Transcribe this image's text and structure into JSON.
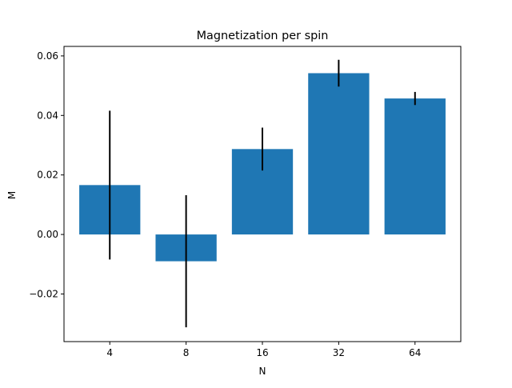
{
  "chart_data": {
    "type": "bar",
    "title": "Magnetization per spin",
    "xlabel": "N",
    "ylabel": "M",
    "categories": [
      "4",
      "8",
      "16",
      "32",
      "64"
    ],
    "values": [
      0.0166,
      -0.009,
      0.0287,
      0.0542,
      0.0457
    ],
    "errors": [
      0.025,
      0.0222,
      0.0072,
      0.0045,
      0.0022
    ],
    "ylim": [
      -0.036,
      0.0632
    ],
    "yticks": [
      -0.02,
      0.0,
      0.02,
      0.04,
      0.06
    ],
    "ytick_labels": [
      "−0.02",
      "0.00",
      "0.02",
      "0.04",
      "0.06"
    ],
    "grid": false,
    "bar_color": "#1f77b4",
    "error_color": "#000000"
  }
}
